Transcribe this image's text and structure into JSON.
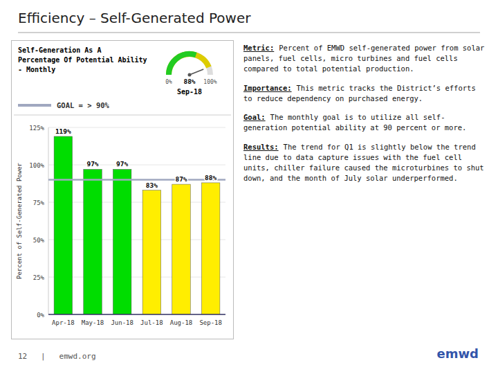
{
  "title": "Efficiency – Self-Generated Power",
  "annotations": [
    {
      "label": "Metric:",
      "text": "Percent of EMWD self-generated power from solar panels, fuel cells, micro turbines and fuel cells compared to total potential production."
    },
    {
      "label": "Importance:",
      "text": "This metric tracks the District’s efforts to reduce dependency on purchased energy."
    },
    {
      "label": "Goal:",
      "text": "The monthly goal is to utilize all self-generation potential ability at 90 percent or more."
    },
    {
      "label": "Results:",
      "text": "The trend for Q1 is slightly below the trend line due to data capture issues with the fuel cell units, chiller failure caused the microturbines to shut down, and the month of July solar underperformed."
    }
  ],
  "footer": "12   |   emwd.org",
  "logo": "emwd",
  "chart_data": [
    {
      "type": "bar",
      "title": [
        "Self-Generation As A",
        "Percentage Of Potential Ability",
        "- Monthly"
      ],
      "categories": [
        "Apr-18",
        "May-18",
        "Jun-18",
        "Jul-18",
        "Aug-18",
        "Sep-18"
      ],
      "values": [
        119,
        97,
        97,
        83,
        87,
        88
      ],
      "value_labels": [
        "119%",
        "97%",
        "97%",
        "83%",
        "87%",
        "88%"
      ],
      "data_labels": true,
      "colors": [
        "#00dd00",
        "#00dd00",
        "#00dd00",
        "#ffee00",
        "#ffee00",
        "#ffee00"
      ],
      "ylabel": "Percent of Self-Generated Power",
      "ylim": [
        0,
        125
      ],
      "yticks": [
        {
          "value": 0,
          "label": "0%"
        },
        {
          "value": 25,
          "label": "25%"
        },
        {
          "value": 50,
          "label": "50%"
        },
        {
          "value": 75,
          "label": "75%"
        },
        {
          "value": 100,
          "label": "100%"
        },
        {
          "value": 125,
          "label": "125%"
        }
      ],
      "grid": true,
      "goal": {
        "value": 90,
        "label": "GOAL = > 90%",
        "color": "#a0a8c0"
      }
    },
    {
      "type": "gauge",
      "title": "Sep-18",
      "values": [
        88
      ],
      "value_labels": [
        "88%"
      ],
      "ylim": [
        0,
        100
      ],
      "yticks": [
        {
          "value": 0,
          "label": "0%"
        },
        {
          "value": 100,
          "label": "100%"
        }
      ],
      "color": "#ddcc00",
      "bands": [
        {
          "range": [
            0,
            60
          ],
          "color": "#22cc22"
        }
      ]
    }
  ]
}
